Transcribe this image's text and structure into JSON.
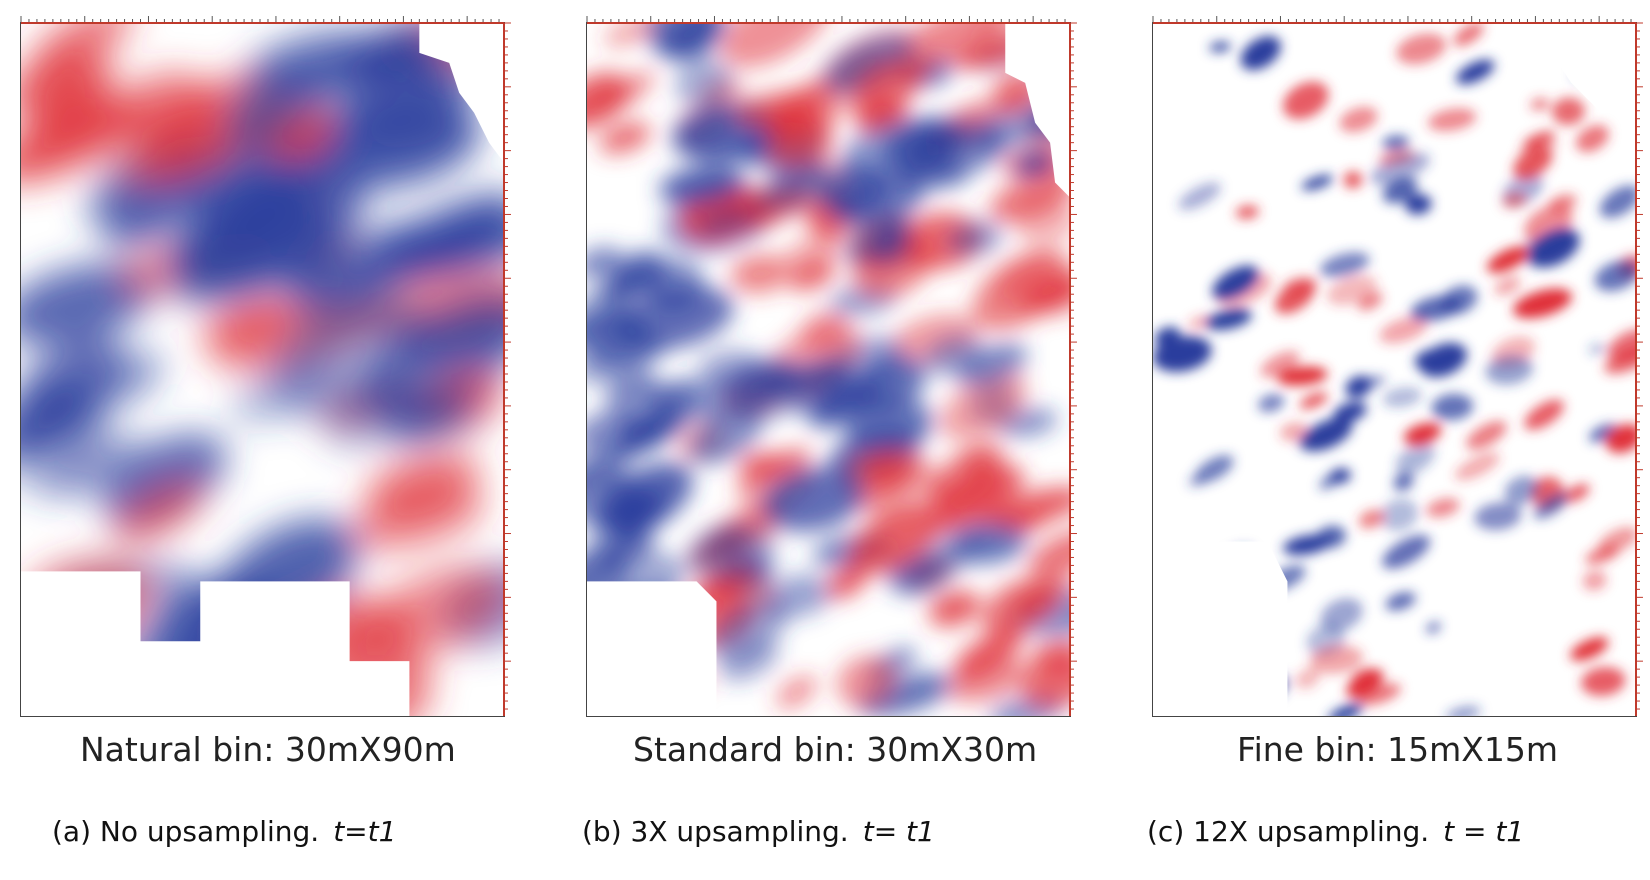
{
  "panels": [
    {
      "bin_label": "Natural bin: 30mX90m",
      "caption_text": "(a) No upsampling.",
      "time_label": "t=t1"
    },
    {
      "bin_label": "Standard bin: 30mX30m",
      "caption_text": "(b) 3X upsampling.",
      "time_label": "t= t1"
    },
    {
      "bin_label": "Fine bin: 15mX15m",
      "caption_text": "(c) 12X upsampling.",
      "time_label": "t = t1"
    }
  ],
  "colors": {
    "positive": "#e0313a",
    "negative": "#2b3f9e",
    "background": "#ffffff",
    "axis_tick": "#c0392b"
  }
}
